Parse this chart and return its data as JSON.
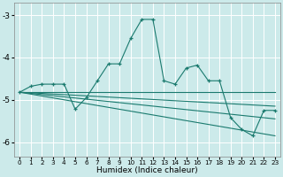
{
  "xlabel": "Humidex (Indice chaleur)",
  "ylabel": "",
  "bg_color": "#cceaea",
  "grid_color": "#ffffff",
  "line_color": "#1a7a6e",
  "xlim": [
    -0.5,
    23.5
  ],
  "ylim": [
    -6.35,
    -2.7
  ],
  "yticks": [
    -6,
    -5,
    -4,
    -3
  ],
  "xticks": [
    0,
    1,
    2,
    3,
    4,
    5,
    6,
    7,
    8,
    9,
    10,
    11,
    12,
    13,
    14,
    15,
    16,
    17,
    18,
    19,
    20,
    21,
    22,
    23
  ],
  "main_x": [
    0,
    1,
    2,
    3,
    4,
    5,
    6,
    7,
    8,
    9,
    10,
    11,
    12,
    13,
    14,
    15,
    16,
    17,
    18,
    19,
    20,
    21,
    22,
    23
  ],
  "main_y": [
    -4.82,
    -4.68,
    -4.63,
    -4.63,
    -4.63,
    -5.22,
    -4.95,
    -4.55,
    -4.15,
    -4.15,
    -3.55,
    -3.1,
    -3.1,
    -4.55,
    -4.63,
    -4.25,
    -4.18,
    -4.55,
    -4.55,
    -5.42,
    -5.7,
    -5.85,
    -5.25,
    -5.25
  ],
  "reg_lines": [
    {
      "x": [
        0,
        23
      ],
      "y": [
        -4.82,
        -4.82
      ]
    },
    {
      "x": [
        0,
        23
      ],
      "y": [
        -4.82,
        -5.15
      ]
    },
    {
      "x": [
        0,
        23
      ],
      "y": [
        -4.82,
        -5.45
      ]
    },
    {
      "x": [
        0,
        23
      ],
      "y": [
        -4.82,
        -5.85
      ]
    }
  ]
}
